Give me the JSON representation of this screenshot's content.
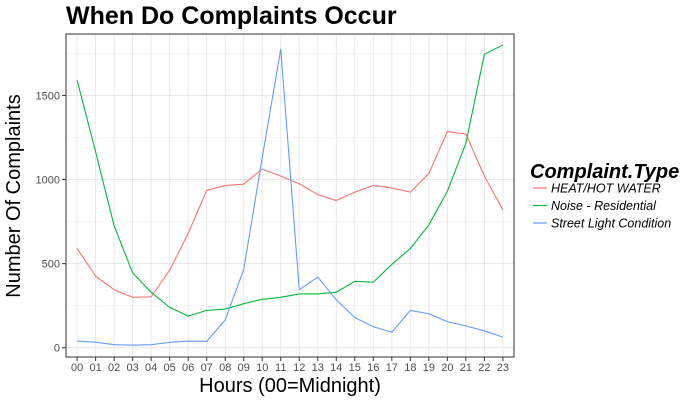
{
  "chart_data": {
    "type": "line",
    "title": "When Do Complaints Occur",
    "xlabel": "Hours (00=Midnight)",
    "ylabel": "Number Of Complaints",
    "x": [
      "00",
      "01",
      "02",
      "03",
      "04",
      "05",
      "06",
      "07",
      "08",
      "09",
      "10",
      "11",
      "12",
      "13",
      "14",
      "15",
      "16",
      "17",
      "18",
      "19",
      "20",
      "21",
      "22",
      "23"
    ],
    "ylim": [
      -55,
      1865
    ],
    "yticks": [
      0,
      500,
      1000,
      1500
    ],
    "grid": true,
    "legend": {
      "title": "Complaint.Type",
      "position": "right"
    },
    "series": [
      {
        "name": "HEAT/HOT WATER",
        "color": "#F8766D",
        "values": [
          590,
          425,
          345,
          300,
          303,
          460,
          680,
          935,
          965,
          972,
          1062,
          1020,
          975,
          910,
          875,
          925,
          965,
          950,
          925,
          1035,
          1285,
          1270,
          1020,
          820
        ]
      },
      {
        "name": "Noise - Residential",
        "color": "#00BA38",
        "values": [
          1590,
          1165,
          725,
          445,
          330,
          240,
          188,
          222,
          230,
          262,
          288,
          300,
          320,
          320,
          330,
          395,
          390,
          495,
          590,
          730,
          930,
          1215,
          1745,
          1800
        ]
      },
      {
        "name": "Street Light Condition",
        "color": "#619CFF",
        "values": [
          40,
          33,
          18,
          15,
          18,
          32,
          40,
          38,
          165,
          465,
          1130,
          1775,
          345,
          420,
          285,
          180,
          125,
          92,
          222,
          202,
          155,
          130,
          100,
          63
        ]
      }
    ]
  }
}
